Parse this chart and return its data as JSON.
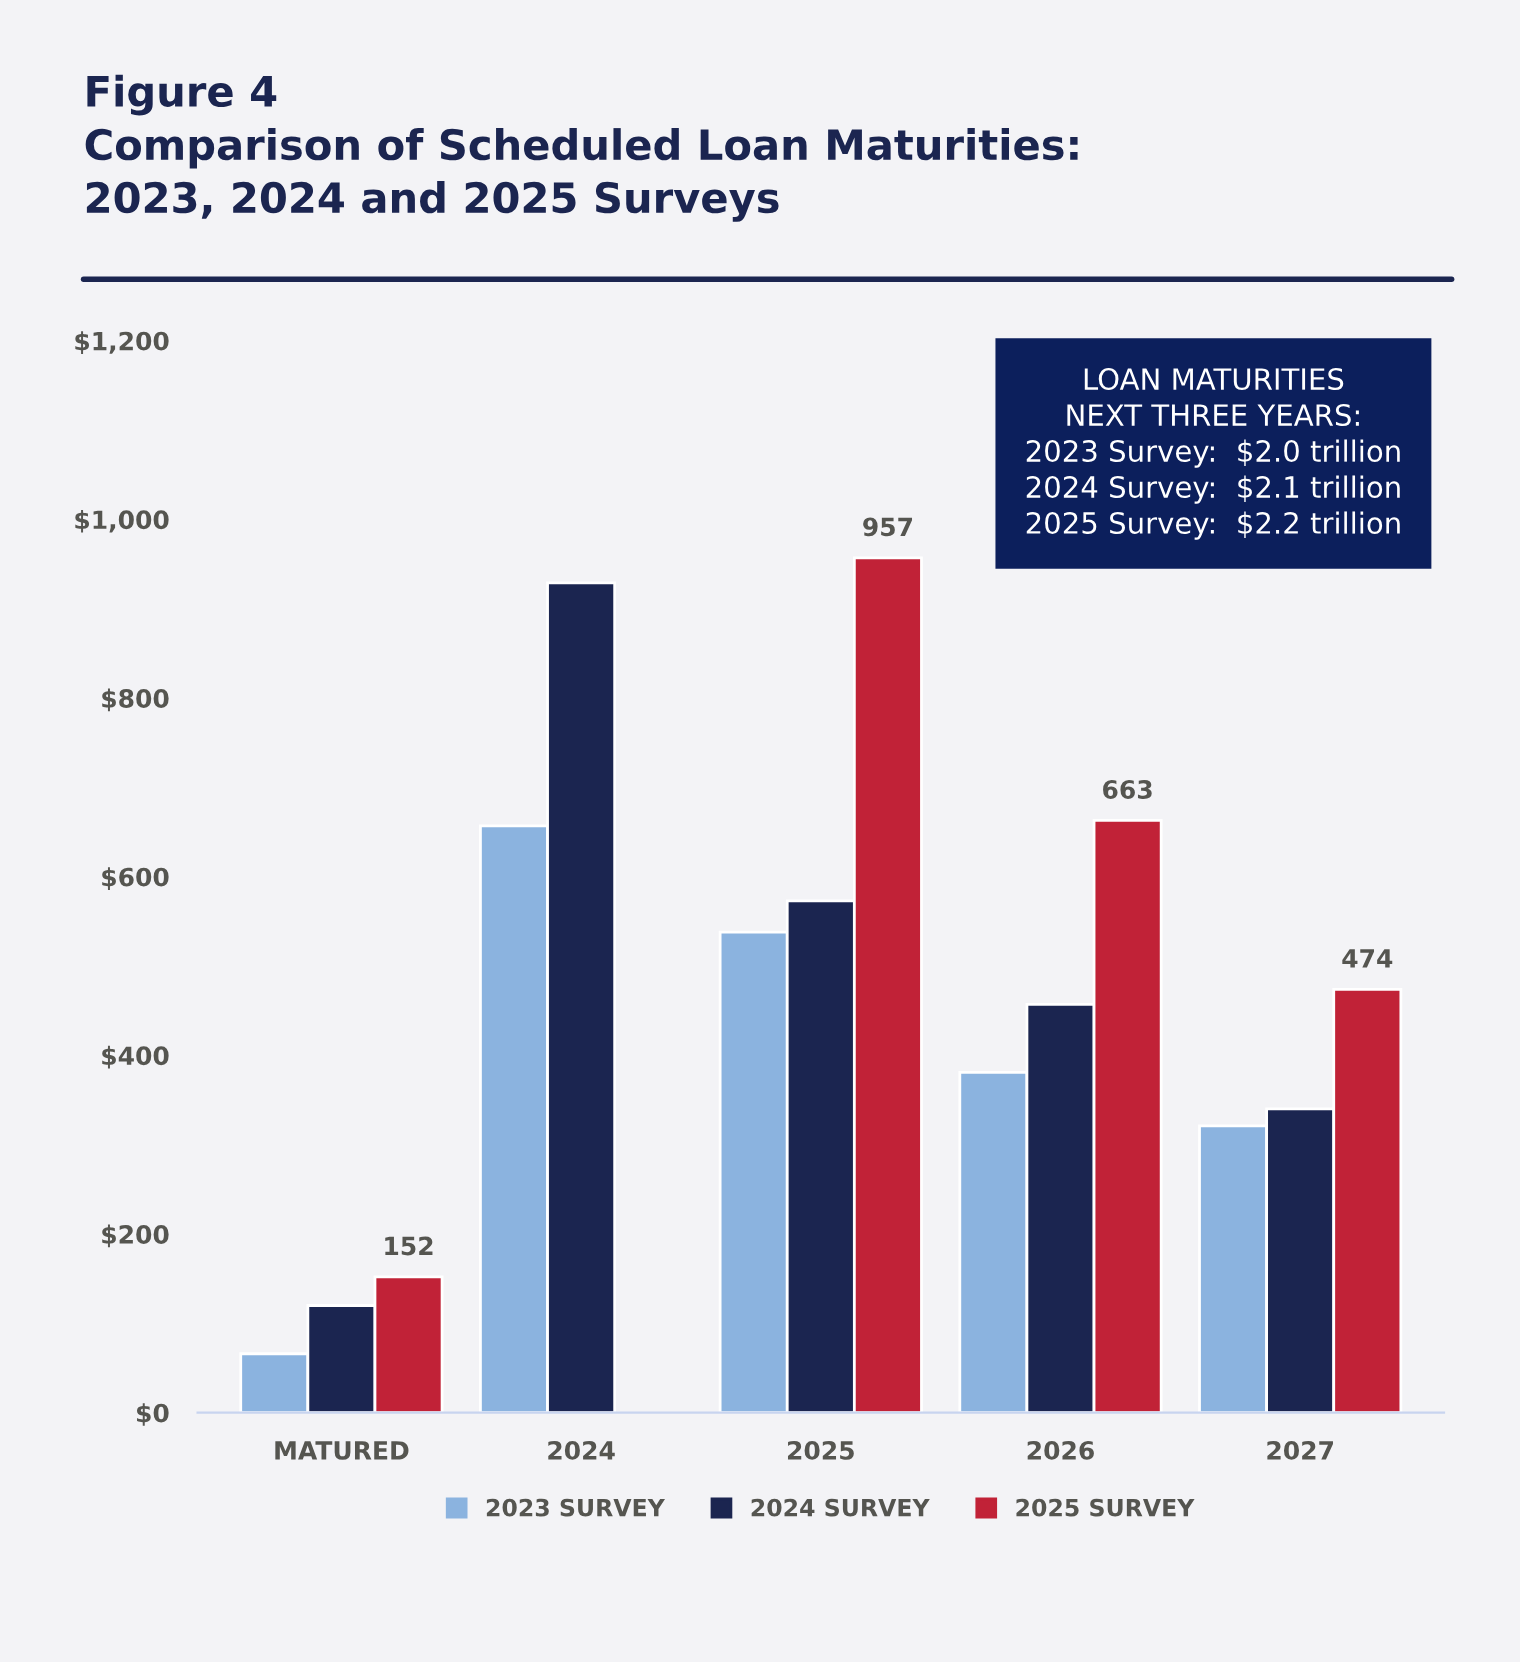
{
  "chart_data": {
    "type": "bar",
    "title": "Figure 4\nComparison of Scheduled Loan Maturities:\n2023, 2024 and 2025 Surveys",
    "categories": [
      "MATURED",
      "2024",
      "2025",
      "2026",
      "2027"
    ],
    "series": [
      {
        "name": "2023 SURVEY",
        "color": "#8bb3df",
        "values": [
          66,
          657,
          538,
          381,
          321
        ]
      },
      {
        "name": "2024 SURVEY",
        "color": "#1b2550",
        "values": [
          120,
          929,
          573,
          457,
          340
        ]
      },
      {
        "name": "2025 SURVEY",
        "color": "#c12237",
        "values": [
          152,
          null,
          957,
          663,
          474
        ],
        "value_labels": [
          "152",
          null,
          "957",
          "663",
          "474"
        ]
      }
    ],
    "ylim": [
      0,
      1200
    ],
    "yticks": [
      {
        "value": 0,
        "label": "$0"
      },
      {
        "value": 200,
        "label": "$200"
      },
      {
        "value": 400,
        "label": "$400"
      },
      {
        "value": 600,
        "label": "$600"
      },
      {
        "value": 800,
        "label": "$800"
      },
      {
        "value": 1000,
        "label": "$1,000"
      },
      {
        "value": 1200,
        "label": "$1,200"
      }
    ],
    "grid": false,
    "legend": "bottom",
    "annotations": [
      "LOAN MATURITIES\nNEXT THREE YEARS:\n2023 Survey:  $2.0 trillion\n2024 Survey:  $2.1 trillion\n2025 Survey:  $2.2 trillion"
    ]
  }
}
